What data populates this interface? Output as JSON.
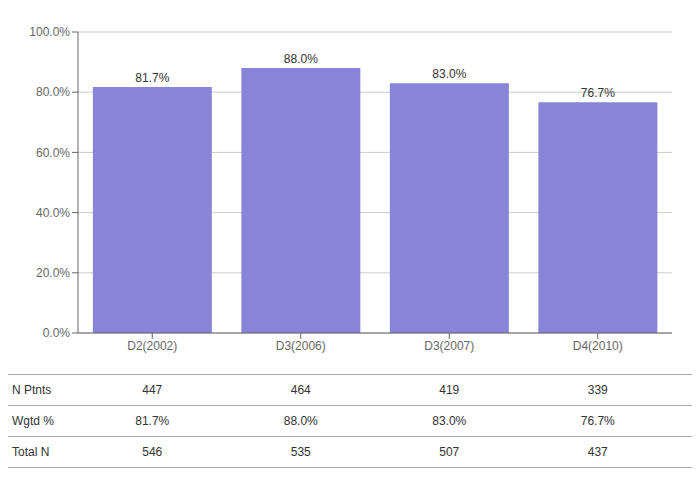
{
  "chart_data": {
    "type": "bar",
    "categories": [
      "D2(2002)",
      "D3(2006)",
      "D3(2007)",
      "D4(2010)"
    ],
    "values": [
      81.7,
      88.0,
      83.0,
      76.7
    ],
    "value_labels": [
      "81.7%",
      "88.0%",
      "83.0%",
      "76.7%"
    ],
    "data_labels": true,
    "ylim": [
      0,
      100
    ],
    "yticks": [
      {
        "value": 0,
        "label": "0.0%"
      },
      {
        "value": 20,
        "label": "20.0%"
      },
      {
        "value": 40,
        "label": "40.0%"
      },
      {
        "value": 60,
        "label": "60.0%"
      },
      {
        "value": 80,
        "label": "80.0%"
      },
      {
        "value": 100,
        "label": "100.0%"
      }
    ],
    "grid": true,
    "table": [
      {
        "label": "N Ptnts",
        "values": [
          447,
          464,
          419,
          339
        ]
      },
      {
        "label": "Wgtd %",
        "values": [
          81.7,
          88.0,
          83.0,
          76.7
        ],
        "value_labels": [
          "81.7%",
          "88.0%",
          "83.0%",
          "76.7%"
        ]
      },
      {
        "label": "Total N",
        "values": [
          546,
          535,
          507,
          437
        ]
      }
    ]
  }
}
